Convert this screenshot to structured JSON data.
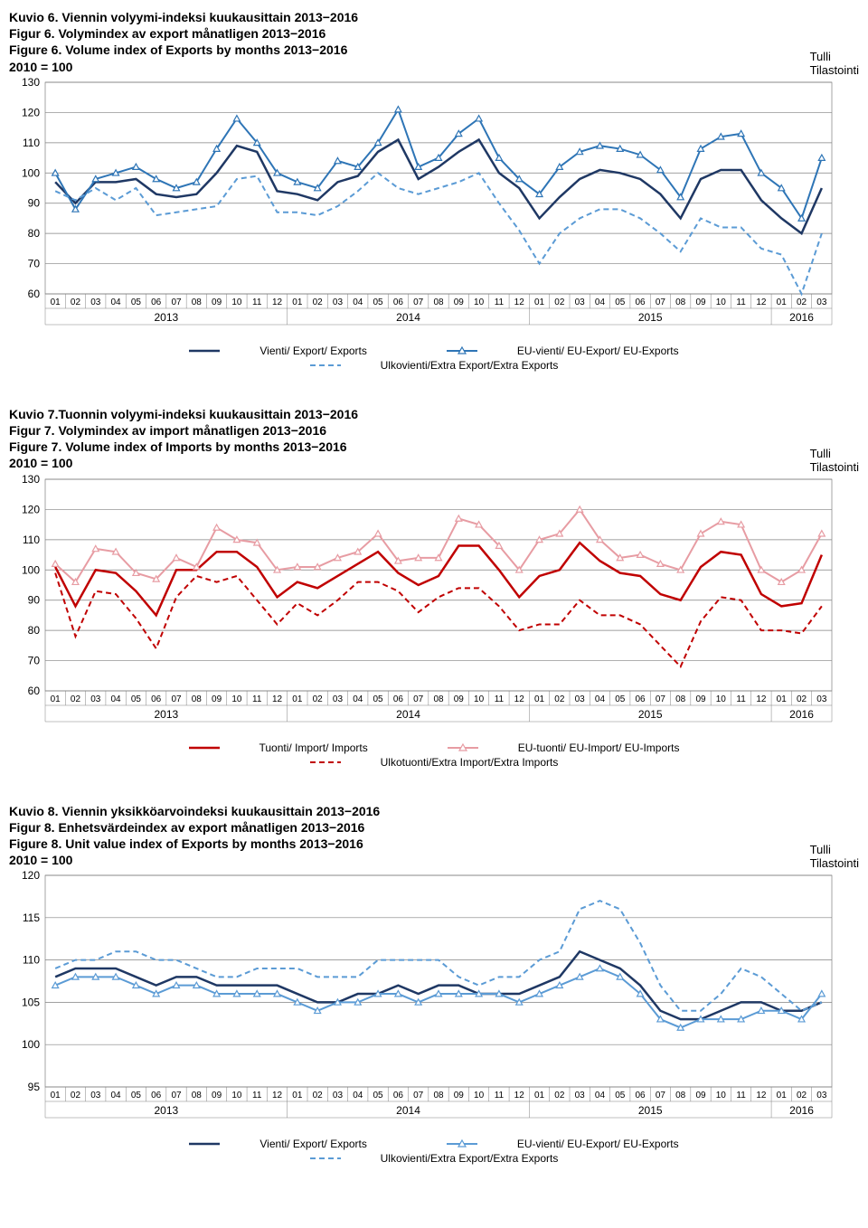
{
  "source": {
    "line1": "Tulli",
    "line2": "Tilastointi"
  },
  "chart1": {
    "titles": {
      "fi": "Kuvio 6. Viennin volyymi-indeksi kuukausittain 2013−2016",
      "sv": "Figur 6. Volymindex av export månatligen 2013−2016",
      "en": "Figure 6. Volume index of Exports by months 2013−2016"
    },
    "baseline": "2010 = 100",
    "type": "line",
    "ylim": [
      60,
      130
    ],
    "ytick_step": 10,
    "background_color": "#ffffff",
    "grid_color": "#808080",
    "months": [
      "01",
      "02",
      "03",
      "04",
      "05",
      "06",
      "07",
      "08",
      "09",
      "10",
      "11",
      "12",
      "01",
      "02",
      "03",
      "04",
      "05",
      "06",
      "07",
      "08",
      "09",
      "10",
      "11",
      "12",
      "01",
      "02",
      "03",
      "04",
      "05",
      "06",
      "07",
      "08",
      "09",
      "10",
      "11",
      "12",
      "01",
      "02",
      "03"
    ],
    "years": [
      "2013",
      "2014",
      "2015",
      "2016"
    ],
    "year_spans": [
      12,
      12,
      12,
      3
    ],
    "series": [
      {
        "name": "Vienti/ Export/ Exports",
        "color": "#1f3864",
        "dash": "",
        "marker": "none",
        "width": 2.5,
        "values": [
          97,
          90,
          97,
          97,
          98,
          93,
          92,
          93,
          100,
          109,
          107,
          94,
          93,
          91,
          97,
          99,
          107,
          111,
          98,
          102,
          107,
          111,
          100,
          95,
          85,
          92,
          98,
          101,
          100,
          98,
          93,
          85,
          98,
          101,
          101,
          91,
          85,
          80,
          95
        ]
      },
      {
        "name": "EU-vienti/ EU-Export/ EU-Exports",
        "color": "#2e75b6",
        "dash": "",
        "marker": "triangle",
        "width": 2,
        "values": [
          100,
          88,
          98,
          100,
          102,
          98,
          95,
          97,
          108,
          118,
          110,
          100,
          97,
          95,
          104,
          102,
          110,
          121,
          102,
          105,
          113,
          118,
          105,
          98,
          93,
          102,
          107,
          109,
          108,
          106,
          101,
          92,
          108,
          112,
          113,
          100,
          95,
          85,
          105
        ]
      },
      {
        "name": "Ulkovienti/Extra Export/Extra Exports",
        "color": "#5b9bd5",
        "dash": "6,4",
        "marker": "none",
        "width": 2,
        "values": [
          94,
          91,
          95,
          91,
          95,
          86,
          87,
          88,
          89,
          98,
          99,
          87,
          87,
          86,
          89,
          94,
          100,
          95,
          93,
          95,
          97,
          100,
          90,
          81,
          70,
          80,
          85,
          88,
          88,
          85,
          80,
          74,
          85,
          82,
          82,
          75,
          73,
          60,
          80
        ]
      }
    ]
  },
  "chart2": {
    "titles": {
      "fi": "Kuvio 7.Tuonnin volyymi-indeksi kuukausittain 2013−2016",
      "sv": "Figur 7. Volymindex av import månatligen 2013−2016",
      "en": "Figure 7. Volume index of Imports by months 2013−2016"
    },
    "baseline": "2010 = 100",
    "type": "line",
    "ylim": [
      60,
      130
    ],
    "ytick_step": 10,
    "background_color": "#ffffff",
    "grid_color": "#808080",
    "months": [
      "01",
      "02",
      "03",
      "04",
      "05",
      "06",
      "07",
      "08",
      "09",
      "10",
      "11",
      "12",
      "01",
      "02",
      "03",
      "04",
      "05",
      "06",
      "07",
      "08",
      "09",
      "10",
      "11",
      "12",
      "01",
      "02",
      "03",
      "04",
      "05",
      "06",
      "07",
      "08",
      "09",
      "10",
      "11",
      "12",
      "01",
      "02",
      "03"
    ],
    "years": [
      "2013",
      "2014",
      "2015",
      "2016"
    ],
    "year_spans": [
      12,
      12,
      12,
      3
    ],
    "series": [
      {
        "name": "Tuonti/ Import/ Imports",
        "color": "#c00000",
        "dash": "",
        "marker": "none",
        "width": 2.5,
        "values": [
          101,
          88,
          100,
          99,
          93,
          85,
          100,
          100,
          106,
          106,
          101,
          91,
          96,
          94,
          98,
          102,
          106,
          99,
          95,
          98,
          108,
          108,
          100,
          91,
          98,
          100,
          109,
          103,
          99,
          98,
          92,
          90,
          101,
          106,
          105,
          92,
          88,
          89,
          105
        ]
      },
      {
        "name": "EU-tuonti/ EU-Import/ EU-Imports",
        "color": "#e79ca3",
        "dash": "",
        "marker": "triangle",
        "width": 2,
        "values": [
          102,
          96,
          107,
          106,
          99,
          97,
          104,
          101,
          114,
          110,
          109,
          100,
          101,
          101,
          104,
          106,
          112,
          103,
          104,
          104,
          117,
          115,
          108,
          100,
          110,
          112,
          120,
          110,
          104,
          105,
          102,
          100,
          112,
          116,
          115,
          100,
          96,
          100,
          112
        ]
      },
      {
        "name": "Ulkotuonti/Extra Import/Extra Imports",
        "color": "#c00000",
        "dash": "6,4",
        "marker": "none",
        "width": 2,
        "values": [
          99,
          78,
          93,
          92,
          84,
          74,
          91,
          98,
          96,
          98,
          90,
          82,
          89,
          85,
          90,
          96,
          96,
          93,
          86,
          91,
          94,
          94,
          88,
          80,
          82,
          82,
          90,
          85,
          85,
          82,
          75,
          68,
          83,
          91,
          90,
          80,
          80,
          79,
          88
        ]
      }
    ]
  },
  "chart3": {
    "titles": {
      "fi": "Kuvio 8. Viennin yksikköarvoindeksi kuukausittain 2013−2016",
      "sv": "Figur 8. Enhetsvärdeindex av export månatligen 2013−2016",
      "en": "Figure 8. Unit value index of Exports by months 2013−2016"
    },
    "baseline": "2010 = 100",
    "type": "line",
    "ylim": [
      95,
      120
    ],
    "ytick_step": 5,
    "background_color": "#ffffff",
    "grid_color": "#808080",
    "months": [
      "01",
      "02",
      "03",
      "04",
      "05",
      "06",
      "07",
      "08",
      "09",
      "10",
      "11",
      "12",
      "01",
      "02",
      "03",
      "04",
      "05",
      "06",
      "07",
      "08",
      "09",
      "10",
      "11",
      "12",
      "01",
      "02",
      "03",
      "04",
      "05",
      "06",
      "07",
      "08",
      "09",
      "10",
      "11",
      "12",
      "01",
      "02",
      "03"
    ],
    "years": [
      "2013",
      "2014",
      "2015",
      "2016"
    ],
    "year_spans": [
      12,
      12,
      12,
      3
    ],
    "series": [
      {
        "name": "Vienti/ Export/ Exports",
        "color": "#1f3864",
        "dash": "",
        "marker": "none",
        "width": 2.5,
        "values": [
          108,
          109,
          109,
          109,
          108,
          107,
          108,
          108,
          107,
          107,
          107,
          107,
          106,
          105,
          105,
          106,
          106,
          107,
          106,
          107,
          107,
          106,
          106,
          106,
          107,
          108,
          111,
          110,
          109,
          107,
          104,
          103,
          103,
          104,
          105,
          105,
          104,
          104,
          105
        ]
      },
      {
        "name": "EU-vienti/ EU-Export/ EU-Exports",
        "color": "#5b9bd5",
        "dash": "",
        "marker": "triangle",
        "width": 2,
        "values": [
          107,
          108,
          108,
          108,
          107,
          106,
          107,
          107,
          106,
          106,
          106,
          106,
          105,
          104,
          105,
          105,
          106,
          106,
          105,
          106,
          106,
          106,
          106,
          105,
          106,
          107,
          108,
          109,
          108,
          106,
          103,
          102,
          103,
          103,
          103,
          104,
          104,
          103,
          106
        ]
      },
      {
        "name": "Ulkovienti/Extra Export/Extra Exports",
        "color": "#5b9bd5",
        "dash": "6,4",
        "marker": "none",
        "width": 2,
        "values": [
          109,
          110,
          110,
          111,
          111,
          110,
          110,
          109,
          108,
          108,
          109,
          109,
          109,
          108,
          108,
          108,
          110,
          110,
          110,
          110,
          108,
          107,
          108,
          108,
          110,
          111,
          116,
          117,
          116,
          112,
          107,
          104,
          104,
          106,
          109,
          108,
          106,
          104,
          105
        ]
      }
    ]
  }
}
